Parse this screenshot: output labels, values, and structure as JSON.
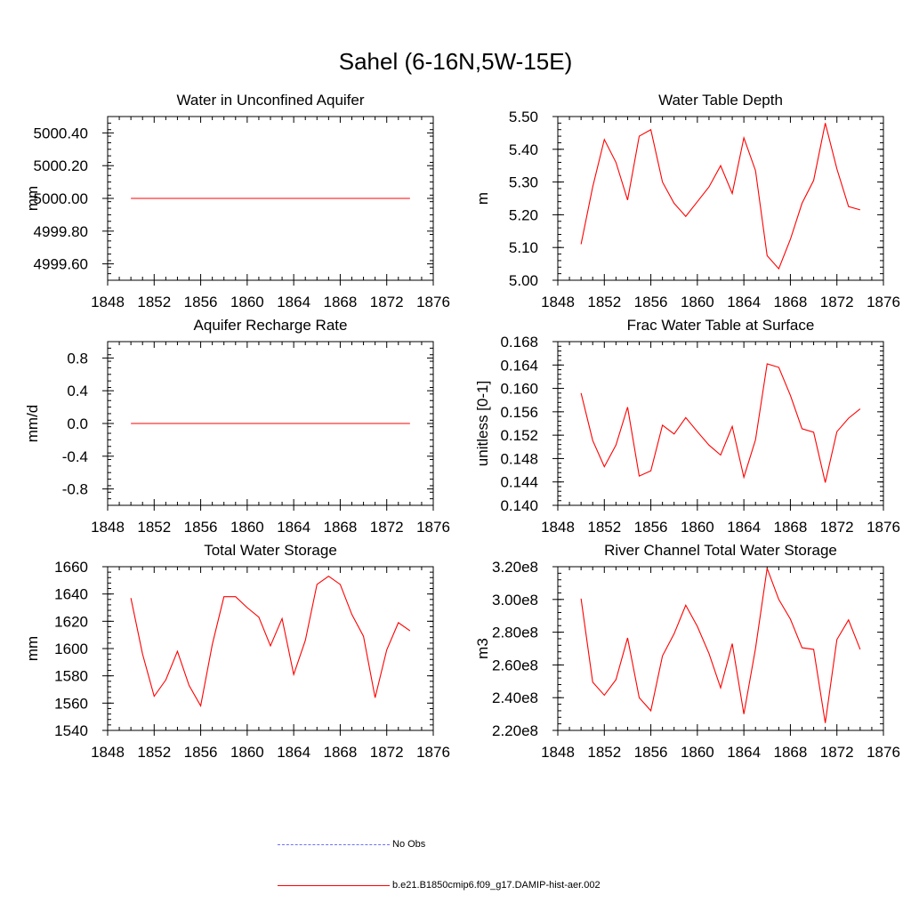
{
  "title": "Sahel (6-16N,5W-15E)",
  "colors": {
    "model": "#ff0000",
    "obs": "#6f6fff",
    "axis": "#000000"
  },
  "legend": [
    {
      "label": "No Obs",
      "style": "dashed",
      "color": "#6f6fff"
    },
    {
      "label": "b.e21.B1850cmip6.f09_g17.DAMIP-hist-aer.002",
      "style": "solid",
      "color": "#ff0000"
    }
  ],
  "chart_data": [
    {
      "type": "line",
      "title": "Water in Unconfined Aquifer",
      "ylabel": "mm",
      "xlim": [
        1848,
        1876
      ],
      "xticks": [
        1848,
        1852,
        1856,
        1860,
        1864,
        1868,
        1872,
        1876
      ],
      "ylim": [
        4999.5,
        5000.5
      ],
      "yticks": [
        4999.6,
        4999.8,
        5000.0,
        5000.2,
        5000.4
      ],
      "ytick_labels": [
        "4999.60",
        "4999.80",
        "5000.00",
        "5000.20",
        "5000.40"
      ],
      "x": [
        1850,
        1851,
        1852,
        1853,
        1854,
        1855,
        1856,
        1857,
        1858,
        1859,
        1860,
        1861,
        1862,
        1863,
        1864,
        1865,
        1866,
        1867,
        1868,
        1869,
        1870,
        1871,
        1872,
        1873,
        1874
      ],
      "series": [
        {
          "name": "b.e21.B1850cmip6.f09_g17.DAMIP-hist-aer.002",
          "values": [
            5000,
            5000,
            5000,
            5000,
            5000,
            5000,
            5000,
            5000,
            5000,
            5000,
            5000,
            5000,
            5000,
            5000,
            5000,
            5000,
            5000,
            5000,
            5000,
            5000,
            5000,
            5000,
            5000,
            5000,
            5000
          ]
        }
      ]
    },
    {
      "type": "line",
      "title": "Water Table Depth",
      "ylabel": "m",
      "xlim": [
        1848,
        1876
      ],
      "xticks": [
        1848,
        1852,
        1856,
        1860,
        1864,
        1868,
        1872,
        1876
      ],
      "ylim": [
        5.0,
        5.5
      ],
      "yticks": [
        5.0,
        5.1,
        5.2,
        5.3,
        5.4,
        5.5
      ],
      "ytick_labels": [
        "5.00",
        "5.10",
        "5.20",
        "5.30",
        "5.40",
        "5.50"
      ],
      "x": [
        1850,
        1851,
        1852,
        1853,
        1854,
        1855,
        1856,
        1857,
        1858,
        1859,
        1860,
        1861,
        1862,
        1863,
        1864,
        1865,
        1866,
        1867,
        1868,
        1869,
        1870,
        1871,
        1872,
        1873,
        1874
      ],
      "series": [
        {
          "name": "b.e21.B1850cmip6.f09_g17.DAMIP-hist-aer.002",
          "values": [
            5.11,
            5.285,
            5.43,
            5.36,
            5.245,
            5.44,
            5.46,
            5.3,
            5.235,
            5.195,
            5.24,
            5.285,
            5.35,
            5.265,
            5.435,
            5.335,
            5.075,
            5.035,
            5.125,
            5.235,
            5.305,
            5.48,
            5.34,
            5.225,
            5.215
          ]
        }
      ]
    },
    {
      "type": "line",
      "title": "Aquifer Recharge Rate",
      "ylabel": "mm/d",
      "xlim": [
        1848,
        1876
      ],
      "xticks": [
        1848,
        1852,
        1856,
        1860,
        1864,
        1868,
        1872,
        1876
      ],
      "ylim": [
        -1.0,
        1.0
      ],
      "yticks": [
        -0.8,
        -0.4,
        0.0,
        0.4,
        0.8
      ],
      "ytick_labels": [
        "-0.8",
        "-0.4",
        "0.0",
        "0.4",
        "0.8"
      ],
      "x": [
        1850,
        1851,
        1852,
        1853,
        1854,
        1855,
        1856,
        1857,
        1858,
        1859,
        1860,
        1861,
        1862,
        1863,
        1864,
        1865,
        1866,
        1867,
        1868,
        1869,
        1870,
        1871,
        1872,
        1873,
        1874
      ],
      "series": [
        {
          "name": "b.e21.B1850cmip6.f09_g17.DAMIP-hist-aer.002",
          "values": [
            0,
            0,
            0,
            0,
            0,
            0,
            0,
            0,
            0,
            0,
            0,
            0,
            0,
            0,
            0,
            0,
            0,
            0,
            0,
            0,
            0,
            0,
            0,
            0,
            0
          ]
        }
      ]
    },
    {
      "type": "line",
      "title": "Frac Water Table at Surface",
      "ylabel": "unitless [0-1]",
      "xlim": [
        1848,
        1876
      ],
      "xticks": [
        1848,
        1852,
        1856,
        1860,
        1864,
        1868,
        1872,
        1876
      ],
      "ylim": [
        0.14,
        0.168
      ],
      "yticks": [
        0.14,
        0.144,
        0.148,
        0.152,
        0.156,
        0.16,
        0.164,
        0.168
      ],
      "ytick_labels": [
        "0.140",
        "0.144",
        "0.148",
        "0.152",
        "0.156",
        "0.160",
        "0.164",
        "0.168"
      ],
      "x": [
        1850,
        1851,
        1852,
        1853,
        1854,
        1855,
        1856,
        1857,
        1858,
        1859,
        1860,
        1861,
        1862,
        1863,
        1864,
        1865,
        1866,
        1867,
        1868,
        1869,
        1870,
        1871,
        1872,
        1873,
        1874
      ],
      "series": [
        {
          "name": "b.e21.B1850cmip6.f09_g17.DAMIP-hist-aer.002",
          "values": [
            0.1592,
            0.1511,
            0.1466,
            0.1503,
            0.1568,
            0.145,
            0.1459,
            0.1537,
            0.1522,
            0.155,
            0.1526,
            0.1503,
            0.1486,
            0.1535,
            0.1448,
            0.1512,
            0.1642,
            0.1636,
            0.1588,
            0.1531,
            0.1525,
            0.1439,
            0.1526,
            0.1549,
            0.1565
          ]
        }
      ]
    },
    {
      "type": "line",
      "title": "Total Water Storage",
      "ylabel": "mm",
      "xlim": [
        1848,
        1876
      ],
      "xticks": [
        1848,
        1852,
        1856,
        1860,
        1864,
        1868,
        1872,
        1876
      ],
      "ylim": [
        1540,
        1660
      ],
      "yticks": [
        1540,
        1560,
        1580,
        1600,
        1620,
        1640,
        1660
      ],
      "ytick_labels": [
        "1540",
        "1560",
        "1580",
        "1600",
        "1620",
        "1640",
        "1660"
      ],
      "x": [
        1850,
        1851,
        1852,
        1853,
        1854,
        1855,
        1856,
        1857,
        1858,
        1859,
        1860,
        1861,
        1862,
        1863,
        1864,
        1865,
        1866,
        1867,
        1868,
        1869,
        1870,
        1871,
        1872,
        1873,
        1874
      ],
      "series": [
        {
          "name": "b.e21.B1850cmip6.f09_g17.DAMIP-hist-aer.002",
          "values": [
            1637,
            1596,
            1565,
            1577,
            1598,
            1573,
            1558,
            1603,
            1638,
            1638,
            1630,
            1623,
            1602,
            1622,
            1581,
            1606,
            1647,
            1653,
            1647,
            1625,
            1609,
            1564,
            1599,
            1619,
            1613
          ]
        }
      ]
    },
    {
      "type": "line",
      "title": "River Channel Total Water Storage",
      "ylabel": "m3",
      "xlim": [
        1848,
        1876
      ],
      "xticks": [
        1848,
        1852,
        1856,
        1860,
        1864,
        1868,
        1872,
        1876
      ],
      "ylim": [
        220000000,
        320000000
      ],
      "yticks": [
        220000000,
        240000000,
        260000000,
        280000000,
        300000000,
        320000000
      ],
      "ytick_labels": [
        "2.20e8",
        "2.40e8",
        "2.60e8",
        "2.80e8",
        "3.00e8",
        "3.20e8"
      ],
      "x": [
        1850,
        1851,
        1852,
        1853,
        1854,
        1855,
        1856,
        1857,
        1858,
        1859,
        1860,
        1861,
        1862,
        1863,
        1864,
        1865,
        1866,
        1867,
        1868,
        1869,
        1870,
        1871,
        1872,
        1873,
        1874
      ],
      "series": [
        {
          "name": "b.e21.B1850cmip6.f09_g17.DAMIP-hist-aer.002",
          "values": [
            300500000,
            249500000,
            241500000,
            251000000,
            276500000,
            240000000,
            232000000,
            265500000,
            279000000,
            296500000,
            283500000,
            267000000,
            246000000,
            273000000,
            230000000,
            270000000,
            319000000,
            300000000,
            288000000,
            270500000,
            269500000,
            224500000,
            275500000,
            287500000,
            269500000
          ]
        }
      ]
    }
  ]
}
